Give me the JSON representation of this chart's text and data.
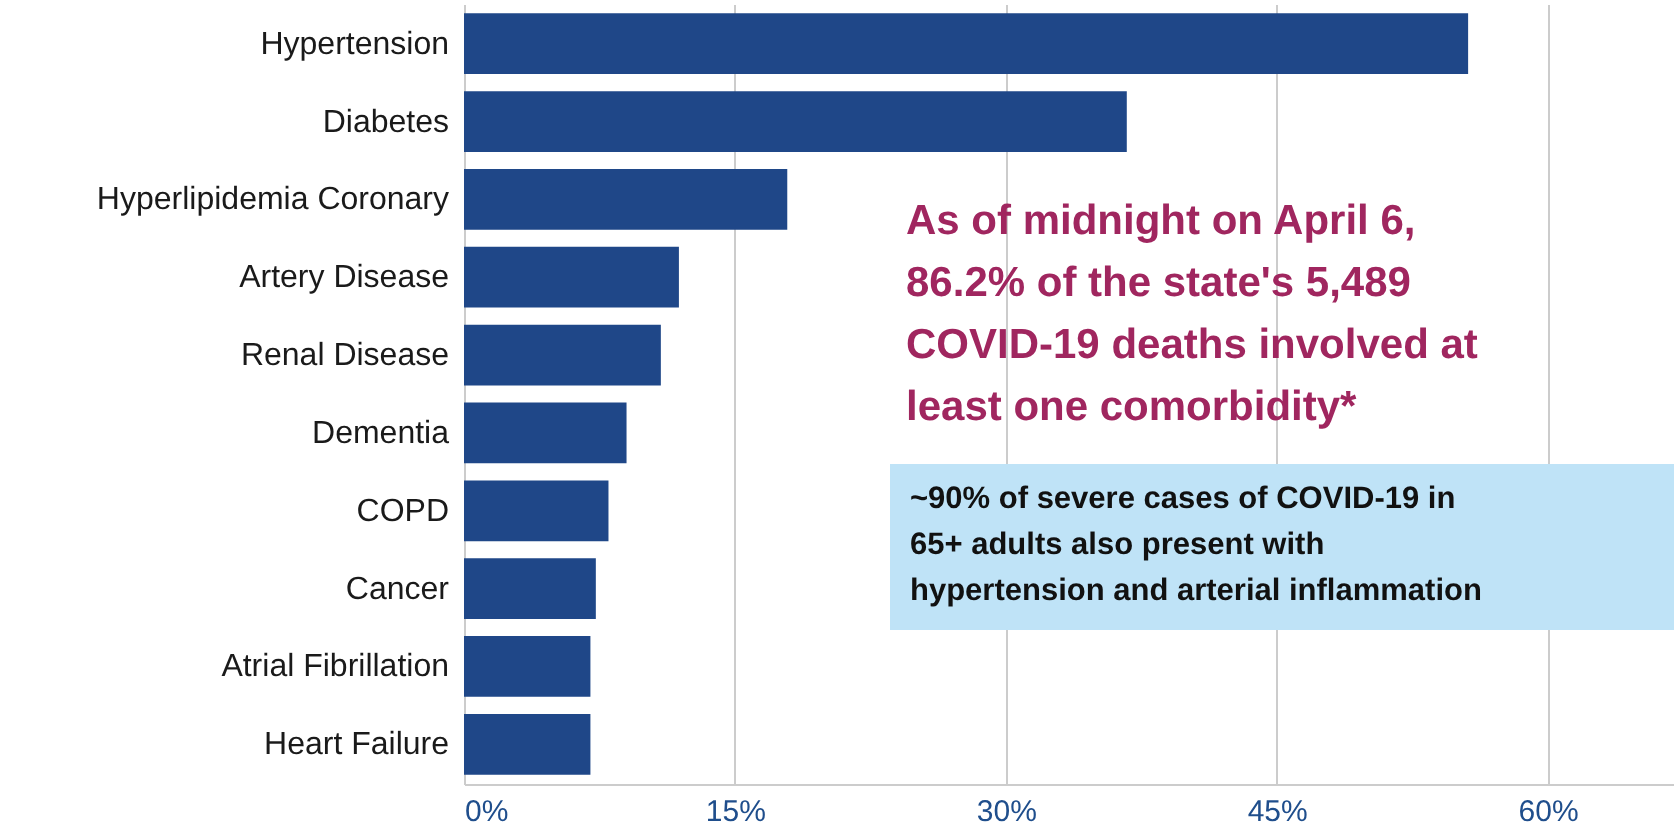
{
  "chart_data": {
    "type": "bar",
    "orientation": "horizontal",
    "categories": [
      "Hypertension",
      "Diabetes",
      "Hyperlipidemia  Coronary",
      "Artery Disease",
      "Renal Disease",
      "Dementia",
      "COPD",
      "Cancer",
      "Atrial Fibrillation",
      "Heart Failure"
    ],
    "values": [
      55.6,
      36.7,
      17.9,
      11.9,
      10.9,
      9.0,
      8.0,
      7.3,
      7.0,
      7.0
    ],
    "color": "#1f4788",
    "xlim": [
      0,
      67
    ],
    "xticks": [
      {
        "value": 0,
        "label": "0%"
      },
      {
        "value": 15,
        "label": "15%"
      },
      {
        "value": 30,
        "label": "30%"
      },
      {
        "value": 45,
        "label": "45%"
      },
      {
        "value": 60,
        "label": "60%"
      }
    ],
    "grid": "x",
    "annotations": [
      "As of midnight on April 6, 86.2% of the state's 5,489 COVID-19 deaths involved at least one comorbidity*",
      "~90% of severe cases of COVID-19 in 65+ adults also present with hypertension and arterial inflammation"
    ]
  }
}
